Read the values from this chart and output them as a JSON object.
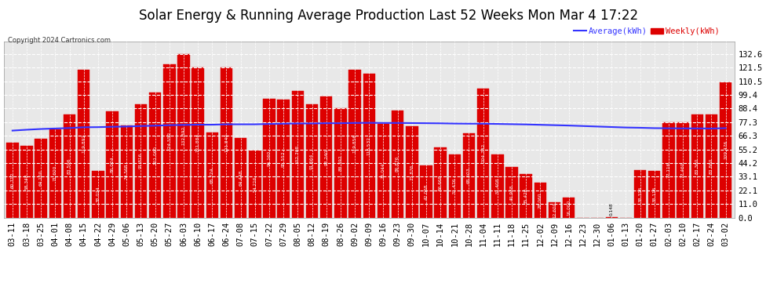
{
  "title": "Solar Energy & Running Average Production Last 52 Weeks Mon Mar 4 17:22",
  "copyright": "Copyright 2024 Cartronics.com",
  "legend_avg": "Average(kWh)",
  "legend_weekly": "Weekly(kWh)",
  "categories": [
    "03-11",
    "03-18",
    "03-25",
    "04-01",
    "04-08",
    "04-15",
    "04-22",
    "04-29",
    "05-06",
    "05-13",
    "05-20",
    "05-27",
    "06-03",
    "06-10",
    "06-17",
    "06-24",
    "07-08",
    "07-15",
    "07-22",
    "07-29",
    "08-05",
    "08-12",
    "08-19",
    "08-26",
    "09-02",
    "09-09",
    "09-16",
    "09-23",
    "09-30",
    "10-07",
    "10-14",
    "10-21",
    "10-28",
    "11-04",
    "11-11",
    "11-18",
    "11-25",
    "12-02",
    "12-09",
    "12-16",
    "12-23",
    "12-30",
    "01-06",
    "01-13",
    "01-20",
    "01-27",
    "02-03",
    "02-10",
    "02-17",
    "02-24",
    "03-02"
  ],
  "weekly_values": [
    60.712,
    58.348,
    64.1,
    71.6,
    83.596,
    119.892,
    38.024,
    86.024,
    74.568,
    91.816,
    101.06,
    124.552,
    132.392,
    121.884,
    68.724,
    121.84,
    64.448,
    54.216,
    96.16,
    95.552,
    102.768,
    91.664,
    98.24,
    88.392,
    119.856,
    116.532,
    76.044,
    86.876,
    73.876,
    42.068,
    56.668,
    51.476,
    68.503,
    104.732,
    51.408,
    40.988,
    35.42,
    28.06,
    12.6,
    16.0,
    0.0,
    0.0,
    0.148,
    0.0,
    38.316,
    38.116,
    77.116,
    77.46,
    83.36,
    83.86,
    109.476
  ],
  "avg_values": [
    70.5,
    71.2,
    71.8,
    72.2,
    72.6,
    73.2,
    73.3,
    73.6,
    73.8,
    74.2,
    74.5,
    74.9,
    75.1,
    75.3,
    75.3,
    75.6,
    75.6,
    75.6,
    75.9,
    76.1,
    76.3,
    76.3,
    76.5,
    76.5,
    76.7,
    76.8,
    76.7,
    76.7,
    76.6,
    76.5,
    76.4,
    76.2,
    76.1,
    76.1,
    75.9,
    75.7,
    75.5,
    75.2,
    74.9,
    74.6,
    74.2,
    73.8,
    73.4,
    73.0,
    72.8,
    72.5,
    72.4,
    72.3,
    72.3,
    72.2,
    72.5
  ],
  "bar_color": "#dd0000",
  "bar_edge_color": "#dd0000",
  "avg_line_color": "#3333ff",
  "bg_color": "#ffffff",
  "plot_bg_color": "#e8e8e8",
  "grid_color": "#bbbbbb",
  "title_color": "#000000",
  "copyright_color": "#333333",
  "yticks": [
    0.0,
    11.0,
    22.1,
    33.1,
    44.2,
    55.2,
    66.3,
    77.3,
    88.4,
    99.4,
    110.5,
    121.5,
    132.6
  ],
  "ylim": [
    0.0,
    143.0
  ],
  "title_fontsize": 12,
  "tick_fontsize": 7.5,
  "dpi": 100
}
